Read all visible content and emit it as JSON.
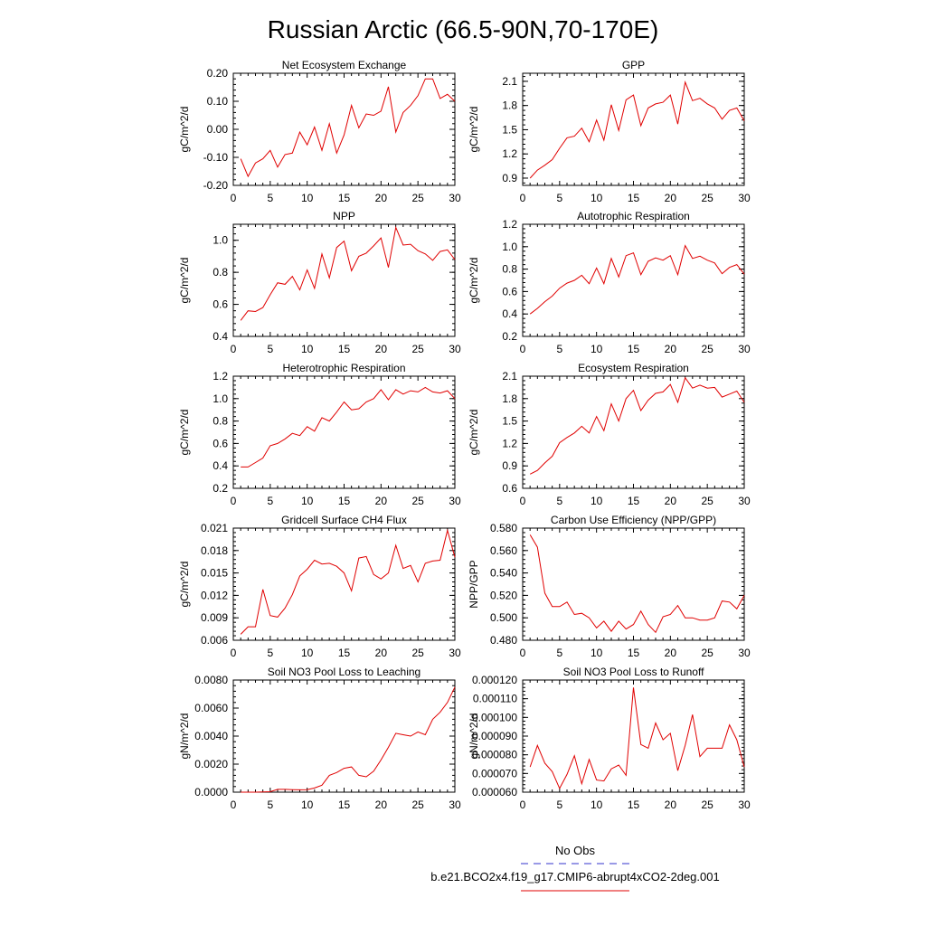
{
  "figure": {
    "title": "Russian Arctic (66.5-90N,70-170E)",
    "legend": {
      "obs_label": "No Obs",
      "obs_color": "#3333cc",
      "model_label": "b.e21.BCO2x4.f19_g17.CMIP6-abrupt4xCO2-2deg.001",
      "model_color": "#e00000"
    }
  },
  "chart_data": [
    {
      "type": "line",
      "title": "Net Ecosystem Exchange",
      "xlabel": "",
      "ylabel": "gC/m^2/d",
      "xlim": [
        0,
        30
      ],
      "ylim": [
        -0.2,
        0.2
      ],
      "xticks": [
        0,
        5,
        10,
        15,
        20,
        25,
        30
      ],
      "yticks": [
        -0.2,
        -0.1,
        0.0,
        0.1,
        0.2
      ],
      "ytick_labels": [
        "-0.20",
        "-0.10",
        "0.00",
        "0.10",
        "0.20"
      ],
      "x": [
        1,
        2,
        3,
        4,
        5,
        6,
        7,
        8,
        9,
        10,
        11,
        12,
        13,
        14,
        15,
        16,
        17,
        18,
        19,
        20,
        21,
        22,
        23,
        24,
        25,
        26,
        27,
        28,
        29,
        30
      ],
      "series": [
        {
          "name": "b.e21.BCO2x4.f19_g17.CMIP6-abrupt4xCO2-2deg.001",
          "values": [
            -0.105,
            -0.168,
            -0.12,
            -0.105,
            -0.075,
            -0.135,
            -0.09,
            -0.085,
            -0.01,
            -0.055,
            0.008,
            -0.075,
            0.02,
            -0.085,
            -0.02,
            0.085,
            0.005,
            0.055,
            0.05,
            0.065,
            0.152,
            -0.01,
            0.06,
            0.085,
            0.12,
            0.18,
            0.18,
            0.11,
            0.125,
            0.1
          ]
        }
      ]
    },
    {
      "type": "line",
      "title": "GPP",
      "xlabel": "",
      "ylabel": "gC/m^2/d",
      "xlim": [
        0,
        30
      ],
      "ylim": [
        0.81,
        2.2
      ],
      "xticks": [
        0,
        5,
        10,
        15,
        20,
        25,
        30
      ],
      "yticks": [
        0.9,
        1.2,
        1.5,
        1.8,
        2.1
      ],
      "ytick_labels": [
        "0.9",
        "1.2",
        "1.5",
        "1.8",
        "2.1"
      ],
      "x": [
        1,
        2,
        3,
        4,
        5,
        6,
        7,
        8,
        9,
        10,
        11,
        12,
        13,
        14,
        15,
        16,
        17,
        18,
        19,
        20,
        21,
        22,
        23,
        24,
        25,
        26,
        27,
        28,
        29,
        30
      ],
      "series": [
        {
          "name": "b.e21.BCO2x4.f19_g17.CMIP6-abrupt4xCO2-2deg.001",
          "values": [
            0.9,
            1.0,
            1.06,
            1.13,
            1.27,
            1.4,
            1.42,
            1.52,
            1.35,
            1.62,
            1.37,
            1.81,
            1.49,
            1.87,
            1.93,
            1.55,
            1.77,
            1.82,
            1.84,
            1.93,
            1.57,
            2.09,
            1.86,
            1.89,
            1.82,
            1.77,
            1.63,
            1.74,
            1.77,
            1.61
          ]
        }
      ]
    },
    {
      "type": "line",
      "title": "NPP",
      "xlabel": "",
      "ylabel": "gC/m^2/d",
      "xlim": [
        0,
        30
      ],
      "ylim": [
        0.4,
        1.1
      ],
      "xticks": [
        0,
        5,
        10,
        15,
        20,
        25,
        30
      ],
      "yticks": [
        0.4,
        0.6,
        0.8,
        1.0
      ],
      "ytick_labels": [
        "0.4",
        "0.6",
        "0.8",
        "1.0"
      ],
      "x": [
        1,
        2,
        3,
        4,
        5,
        6,
        7,
        8,
        9,
        10,
        11,
        12,
        13,
        14,
        15,
        16,
        17,
        18,
        19,
        20,
        21,
        22,
        23,
        24,
        25,
        26,
        27,
        28,
        29,
        30
      ],
      "series": [
        {
          "name": "b.e21.BCO2x4.f19_g17.CMIP6-abrupt4xCO2-2deg.001",
          "values": [
            0.5,
            0.56,
            0.555,
            0.58,
            0.66,
            0.735,
            0.725,
            0.775,
            0.69,
            0.815,
            0.7,
            0.915,
            0.765,
            0.955,
            0.995,
            0.81,
            0.9,
            0.92,
            0.965,
            1.015,
            0.83,
            1.08,
            0.97,
            0.975,
            0.935,
            0.915,
            0.875,
            0.93,
            0.94,
            0.88
          ]
        }
      ]
    },
    {
      "type": "line",
      "title": "Autotrophic Respiration",
      "xlabel": "",
      "ylabel": "gC/m^2/d",
      "xlim": [
        0,
        30
      ],
      "ylim": [
        0.2,
        1.2
      ],
      "xticks": [
        0,
        5,
        10,
        15,
        20,
        25,
        30
      ],
      "yticks": [
        0.2,
        0.4,
        0.6,
        0.8,
        1.0,
        1.2
      ],
      "ytick_labels": [
        "0.2",
        "0.4",
        "0.6",
        "0.8",
        "1.0",
        "1.2"
      ],
      "x": [
        1,
        2,
        3,
        4,
        5,
        6,
        7,
        8,
        9,
        10,
        11,
        12,
        13,
        14,
        15,
        16,
        17,
        18,
        19,
        20,
        21,
        22,
        23,
        24,
        25,
        26,
        27,
        28,
        29,
        30
      ],
      "series": [
        {
          "name": "b.e21.BCO2x4.f19_g17.CMIP6-abrupt4xCO2-2deg.001",
          "values": [
            0.4,
            0.45,
            0.51,
            0.56,
            0.63,
            0.675,
            0.7,
            0.745,
            0.67,
            0.81,
            0.67,
            0.895,
            0.73,
            0.92,
            0.945,
            0.75,
            0.87,
            0.9,
            0.88,
            0.92,
            0.75,
            1.01,
            0.895,
            0.915,
            0.88,
            0.855,
            0.76,
            0.815,
            0.84,
            0.755
          ]
        }
      ]
    },
    {
      "type": "line",
      "title": "Heterotrophic Respiration",
      "xlabel": "",
      "ylabel": "gC/m^2/d",
      "xlim": [
        0,
        30
      ],
      "ylim": [
        0.2,
        1.2
      ],
      "xticks": [
        0,
        5,
        10,
        15,
        20,
        25,
        30
      ],
      "yticks": [
        0.2,
        0.4,
        0.6,
        0.8,
        1.0,
        1.2
      ],
      "ytick_labels": [
        "0.2",
        "0.4",
        "0.6",
        "0.8",
        "1.0",
        "1.2"
      ],
      "x": [
        1,
        2,
        3,
        4,
        5,
        6,
        7,
        8,
        9,
        10,
        11,
        12,
        13,
        14,
        15,
        16,
        17,
        18,
        19,
        20,
        21,
        22,
        23,
        24,
        25,
        26,
        27,
        28,
        29,
        30
      ],
      "series": [
        {
          "name": "b.e21.BCO2x4.f19_g17.CMIP6-abrupt4xCO2-2deg.001",
          "values": [
            0.39,
            0.39,
            0.43,
            0.47,
            0.58,
            0.6,
            0.64,
            0.69,
            0.67,
            0.75,
            0.71,
            0.83,
            0.8,
            0.88,
            0.97,
            0.9,
            0.91,
            0.97,
            1.0,
            1.08,
            0.99,
            1.08,
            1.04,
            1.07,
            1.06,
            1.1,
            1.06,
            1.05,
            1.07,
            1.0
          ]
        }
      ]
    },
    {
      "type": "line",
      "title": "Ecosystem Respiration",
      "xlabel": "",
      "ylabel": "gC/m^2/d",
      "xlim": [
        0,
        30
      ],
      "ylim": [
        0.6,
        2.1
      ],
      "xticks": [
        0,
        5,
        10,
        15,
        20,
        25,
        30
      ],
      "yticks": [
        0.6,
        0.9,
        1.2,
        1.5,
        1.8,
        2.1
      ],
      "ytick_labels": [
        "0.6",
        "0.9",
        "1.2",
        "1.5",
        "1.8",
        "2.1"
      ],
      "x": [
        1,
        2,
        3,
        4,
        5,
        6,
        7,
        8,
        9,
        10,
        11,
        12,
        13,
        14,
        15,
        16,
        17,
        18,
        19,
        20,
        21,
        22,
        23,
        24,
        25,
        26,
        27,
        28,
        29,
        30
      ],
      "series": [
        {
          "name": "b.e21.BCO2x4.f19_g17.CMIP6-abrupt4xCO2-2deg.001",
          "values": [
            0.79,
            0.84,
            0.94,
            1.03,
            1.21,
            1.28,
            1.34,
            1.43,
            1.34,
            1.56,
            1.37,
            1.73,
            1.5,
            1.8,
            1.91,
            1.64,
            1.78,
            1.87,
            1.89,
            1.99,
            1.75,
            2.08,
            1.94,
            1.98,
            1.94,
            1.95,
            1.82,
            1.86,
            1.9,
            1.75
          ]
        }
      ]
    },
    {
      "type": "line",
      "title": "Gridcell Surface CH4 Flux",
      "xlabel": "",
      "ylabel": "gC/m^2/d",
      "xlim": [
        0,
        30
      ],
      "ylim": [
        0.006,
        0.021
      ],
      "xticks": [
        0,
        5,
        10,
        15,
        20,
        25,
        30
      ],
      "yticks": [
        0.006,
        0.009,
        0.012,
        0.015,
        0.018,
        0.021
      ],
      "ytick_labels": [
        "0.006",
        "0.009",
        "0.012",
        "0.015",
        "0.018",
        "0.021"
      ],
      "x": [
        1,
        2,
        3,
        4,
        5,
        6,
        7,
        8,
        9,
        10,
        11,
        12,
        13,
        14,
        15,
        16,
        17,
        18,
        19,
        20,
        21,
        22,
        23,
        24,
        25,
        26,
        27,
        28,
        29,
        30
      ],
      "series": [
        {
          "name": "b.e21.BCO2x4.f19_g17.CMIP6-abrupt4xCO2-2deg.001",
          "values": [
            0.0068,
            0.0078,
            0.0078,
            0.0128,
            0.0093,
            0.0091,
            0.0103,
            0.0121,
            0.0146,
            0.0155,
            0.0167,
            0.0162,
            0.0163,
            0.0159,
            0.015,
            0.0126,
            0.017,
            0.0172,
            0.0148,
            0.0142,
            0.015,
            0.0187,
            0.0156,
            0.016,
            0.0138,
            0.0163,
            0.0166,
            0.0167,
            0.0207,
            0.0171
          ]
        }
      ]
    },
    {
      "type": "line",
      "title": "Carbon Use Efficiency (NPP/GPP)",
      "xlabel": "",
      "ylabel": "NPP/GPP",
      "xlim": [
        0,
        30
      ],
      "ylim": [
        0.48,
        0.58
      ],
      "xticks": [
        0,
        5,
        10,
        15,
        20,
        25,
        30
      ],
      "yticks": [
        0.48,
        0.5,
        0.52,
        0.54,
        0.56,
        0.58
      ],
      "ytick_labels": [
        "0.480",
        "0.500",
        "0.520",
        "0.540",
        "0.560",
        "0.580"
      ],
      "x": [
        1,
        2,
        3,
        4,
        5,
        6,
        7,
        8,
        9,
        10,
        11,
        12,
        13,
        14,
        15,
        16,
        17,
        18,
        19,
        20,
        21,
        22,
        23,
        24,
        25,
        26,
        27,
        28,
        29,
        30
      ],
      "series": [
        {
          "name": "b.e21.BCO2x4.f19_g17.CMIP6-abrupt4xCO2-2deg.001",
          "values": [
            0.574,
            0.563,
            0.522,
            0.51,
            0.51,
            0.514,
            0.503,
            0.504,
            0.5,
            0.491,
            0.497,
            0.488,
            0.497,
            0.49,
            0.494,
            0.506,
            0.494,
            0.487,
            0.501,
            0.503,
            0.511,
            0.5,
            0.5,
            0.498,
            0.498,
            0.5,
            0.515,
            0.514,
            0.508,
            0.52
          ]
        }
      ]
    },
    {
      "type": "line",
      "title": "Soil NO3 Pool Loss to Leaching",
      "xlabel": "",
      "ylabel": "gN/m^2/d",
      "xlim": [
        0,
        30
      ],
      "ylim": [
        0,
        0.008
      ],
      "xticks": [
        0,
        5,
        10,
        15,
        20,
        25,
        30
      ],
      "yticks": [
        0,
        0.002,
        0.004,
        0.006,
        0.008
      ],
      "ytick_labels": [
        "0.0000",
        "0.0020",
        "0.0040",
        "0.0060",
        "0.0080"
      ],
      "x": [
        1,
        2,
        3,
        4,
        5,
        6,
        7,
        8,
        9,
        10,
        11,
        12,
        13,
        14,
        15,
        16,
        17,
        18,
        19,
        20,
        21,
        22,
        23,
        24,
        25,
        26,
        27,
        28,
        29,
        30
      ],
      "series": [
        {
          "name": "b.e21.BCO2x4.f19_g17.CMIP6-abrupt4xCO2-2deg.001",
          "values": [
            0.0,
            0.0,
            0.0,
            2e-05,
            3e-05,
            0.0002,
            0.0002,
            0.00018,
            0.00017,
            0.00018,
            0.0003,
            0.0005,
            0.0012,
            0.0014,
            0.0017,
            0.0018,
            0.0012,
            0.0011,
            0.0015,
            0.0023,
            0.0032,
            0.0042,
            0.0041,
            0.004,
            0.0043,
            0.0041,
            0.0052,
            0.0057,
            0.0064,
            0.0075
          ]
        }
      ]
    },
    {
      "type": "line",
      "title": "Soil NO3 Pool Loss to Runoff",
      "xlabel": "",
      "ylabel": "gN/m^2/d",
      "xlim": [
        0,
        30
      ],
      "ylim": [
        6e-05,
        0.00012
      ],
      "xticks": [
        0,
        5,
        10,
        15,
        20,
        25,
        30
      ],
      "yticks": [
        6e-05,
        7e-05,
        8e-05,
        9e-05,
        0.0001,
        0.00011,
        0.00012
      ],
      "ytick_labels": [
        "0.000060",
        "0.000070",
        "0.000080",
        "0.000090",
        "0.000100",
        "0.000110",
        "0.000120"
      ],
      "x": [
        1,
        2,
        3,
        4,
        5,
        6,
        7,
        8,
        9,
        10,
        11,
        12,
        13,
        14,
        15,
        16,
        17,
        18,
        19,
        20,
        21,
        22,
        23,
        24,
        25,
        26,
        27,
        28,
        29,
        30
      ],
      "series": [
        {
          "name": "b.e21.BCO2x4.f19_g17.CMIP6-abrupt4xCO2-2deg.001",
          "values": [
            7.35e-05,
            8.5e-05,
            7.55e-05,
            7.1e-05,
            6.2e-05,
            6.95e-05,
            7.95e-05,
            6.45e-05,
            7.75e-05,
            6.65e-05,
            6.6e-05,
            7.25e-05,
            7.45e-05,
            6.9e-05,
            0.000116,
            8.55e-05,
            8.35e-05,
            9.7e-05,
            8.8e-05,
            9.15e-05,
            7.15e-05,
            8.5e-05,
            0.0001015,
            7.9e-05,
            8.35e-05,
            8.35e-05,
            8.35e-05,
            9.6e-05,
            8.8e-05,
            7.35e-05
          ]
        }
      ]
    }
  ]
}
